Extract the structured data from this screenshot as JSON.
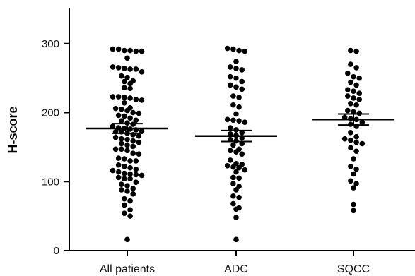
{
  "chart_data": {
    "type": "scatter",
    "subtype": "dot-plot-with-mean-and-sem",
    "ylabel": "H-score",
    "xlabel": "",
    "ylim": [
      0,
      345
    ],
    "yticks": [
      0,
      100,
      200,
      300
    ],
    "categories": [
      "All patients",
      "ADC",
      "SQCC"
    ],
    "groups": [
      {
        "category": "All patients",
        "mean": 177,
        "sem_upper": 184,
        "sem_lower": 170,
        "values": [
          292,
          292,
          290,
          290,
          289,
          289,
          279,
          266,
          265,
          264,
          263,
          263,
          259,
          253,
          251,
          246,
          245,
          242,
          236,
          235,
          223,
          223,
          222,
          221,
          219,
          218,
          214,
          207,
          206,
          205,
          203,
          200,
          199,
          196,
          195,
          192,
          189,
          188,
          185,
          183,
          180,
          178,
          177,
          176,
          175,
          173,
          172,
          172,
          170,
          168,
          166,
          164,
          162,
          161,
          159,
          157,
          155,
          153,
          151,
          147,
          147,
          145,
          141,
          140,
          134,
          133,
          130,
          130,
          124,
          122,
          120,
          118,
          116,
          114,
          112,
          111,
          110,
          109,
          106,
          104,
          104,
          99,
          96,
          94,
          90,
          88,
          86,
          82,
          75,
          72,
          66,
          59,
          54,
          50,
          16
        ]
      },
      {
        "category": "ADC",
        "mean": 166,
        "sem_upper": 174,
        "sem_lower": 158,
        "values": [
          293,
          292,
          290,
          289,
          274,
          266,
          264,
          262,
          252,
          250,
          245,
          240,
          237,
          234,
          224,
          222,
          211,
          208,
          198,
          190,
          189,
          188,
          186,
          178,
          175,
          171,
          169,
          167,
          163,
          161,
          159,
          155,
          153,
          147,
          145,
          143,
          140,
          131,
          126,
          125,
          123,
          121,
          120,
          117,
          114,
          106,
          105,
          97,
          93,
          88,
          79,
          77,
          68,
          62,
          60,
          48,
          16
        ]
      },
      {
        "category": "SQCC",
        "mean": 190,
        "sem_upper": 198,
        "sem_lower": 182,
        "values": [
          290,
          289,
          270,
          265,
          257,
          252,
          250,
          244,
          240,
          233,
          231,
          228,
          224,
          221,
          219,
          213,
          211,
          203,
          201,
          199,
          193,
          191,
          190,
          186,
          183,
          180,
          171,
          165,
          162,
          160,
          157,
          155,
          149,
          144,
          133,
          122,
          118,
          111,
          101,
          97,
          91,
          67,
          58
        ]
      }
    ],
    "grid": false,
    "legend": "none",
    "colors": {
      "points": "#000000",
      "axes": "#000000"
    }
  }
}
